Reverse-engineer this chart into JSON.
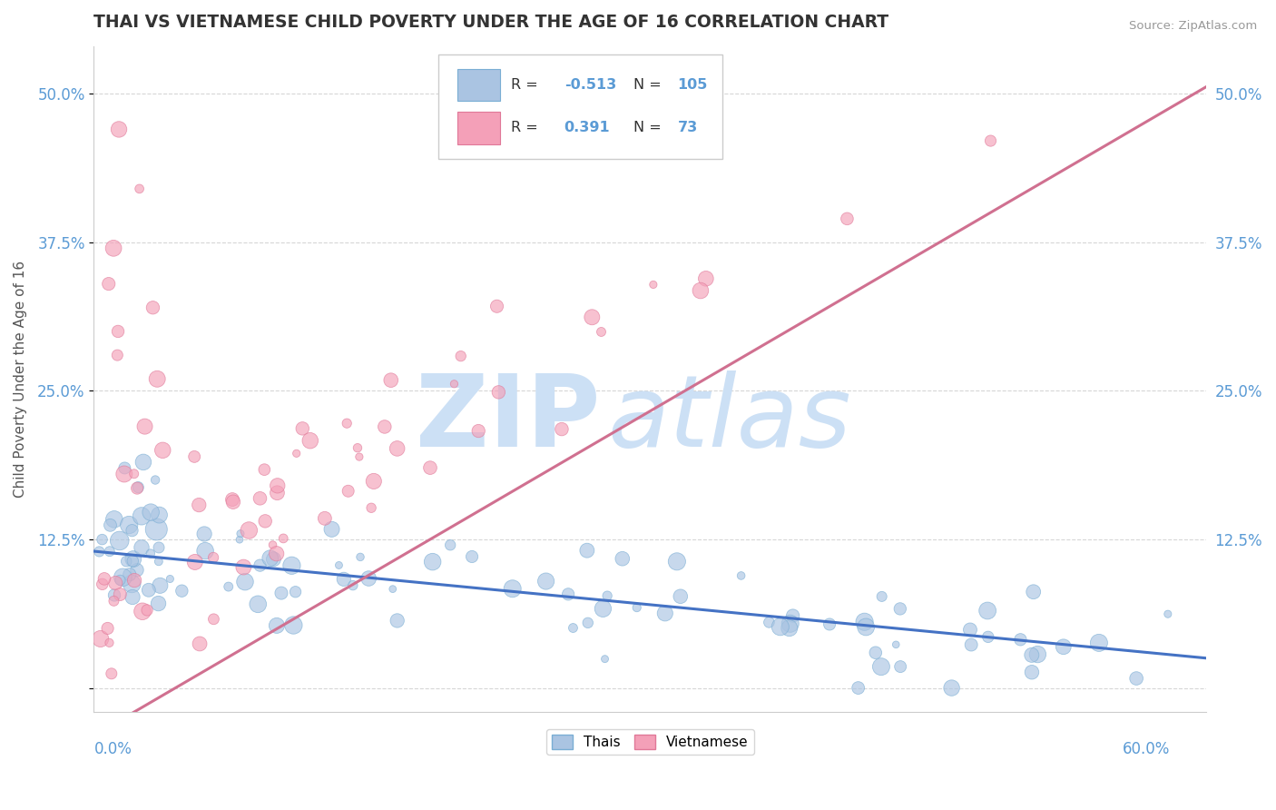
{
  "title": "THAI VS VIETNAMESE CHILD POVERTY UNDER THE AGE OF 16 CORRELATION CHART",
  "source": "Source: ZipAtlas.com",
  "ylabel": "Child Poverty Under the Age of 16",
  "xlim": [
    0.0,
    0.62
  ],
  "ylim": [
    -0.02,
    0.54
  ],
  "yticks": [
    0.0,
    0.125,
    0.25,
    0.375,
    0.5
  ],
  "ytick_labels": [
    "",
    "12.5%",
    "25.0%",
    "37.5%",
    "50.0%"
  ],
  "legend_entries": [
    {
      "label": "Thais",
      "R": -0.513,
      "N": 105,
      "color": "#aac4e2"
    },
    {
      "label": "Vietnamese",
      "R": 0.391,
      "N": 73,
      "color": "#f4a0b8"
    }
  ],
  "title_color": "#333333",
  "tick_color": "#5b9bd5",
  "watermark_zip": "ZIP",
  "watermark_atlas": "atlas",
  "watermark_color": "#cce0f5",
  "background_color": "#ffffff",
  "thai_scatter_color": "#aac4e2",
  "thai_edge_color": "#7aaed4",
  "viet_scatter_color": "#f4a0b8",
  "viet_edge_color": "#e07898",
  "trend_thai_color": "#4472c4",
  "trend_viet_color": "#d07090",
  "trend_viet_dashed_color": "#e0b0c0",
  "grid_color": "#cccccc"
}
